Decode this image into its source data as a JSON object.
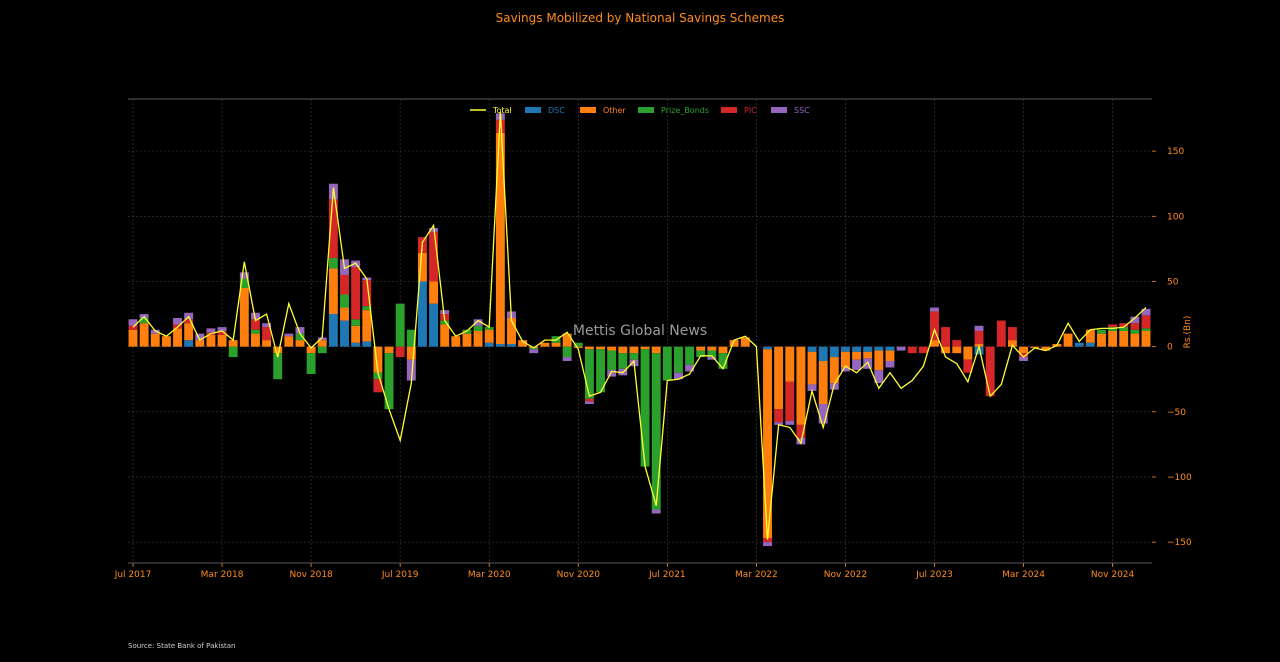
{
  "chart_data": {
    "type": "bar",
    "stacked": true,
    "title": "Savings Mobilized by National Savings Schemes",
    "ylabel": "Rs.(Bn)",
    "xlabel": "",
    "ylim": [
      -166,
      190
    ],
    "yticks": [
      -150,
      -100,
      -50,
      0,
      50,
      100,
      150
    ],
    "y_axis_side": "right",
    "grid": true,
    "legend_placement": "top-center",
    "watermark": "Mettis Global News",
    "source": "Source: State Bank of Pakistan",
    "x_tick_labels": [
      "Jul 2017",
      "Mar 2018",
      "Nov 2018",
      "Jul 2019",
      "Mar 2020",
      "Nov 2020",
      "Jul 2021",
      "Mar 2022",
      "Nov 2022",
      "Jul 2023",
      "Mar 2024",
      "Nov 2024"
    ],
    "x_tick_index": [
      0,
      8,
      16,
      24,
      32,
      40,
      48,
      56,
      64,
      72,
      80,
      88
    ],
    "categories": [
      "2017-07",
      "2017-08",
      "2017-09",
      "2017-10",
      "2017-11",
      "2017-12",
      "2018-01",
      "2018-02",
      "2018-03",
      "2018-04",
      "2018-05",
      "2018-06",
      "2018-07",
      "2018-08",
      "2018-09",
      "2018-10",
      "2018-11",
      "2018-12",
      "2019-01",
      "2019-02",
      "2019-03",
      "2019-04",
      "2019-05",
      "2019-06",
      "2019-07",
      "2019-08",
      "2019-09",
      "2019-10",
      "2019-11",
      "2019-12",
      "2020-01",
      "2020-02",
      "2020-03",
      "2020-04",
      "2020-05",
      "2020-06",
      "2020-07",
      "2020-08",
      "2020-09",
      "2020-10",
      "2020-11",
      "2020-12",
      "2021-01",
      "2021-02",
      "2021-03",
      "2021-04",
      "2021-05",
      "2021-06",
      "2021-07",
      "2021-08",
      "2021-09",
      "2021-10",
      "2021-11",
      "2021-12",
      "2022-01",
      "2022-02",
      "2022-03",
      "2022-04",
      "2022-05",
      "2022-06",
      "2022-07",
      "2022-08",
      "2022-09",
      "2022-10",
      "2022-11",
      "2022-12",
      "2023-01",
      "2023-02",
      "2023-03",
      "2023-04",
      "2023-05",
      "2023-06",
      "2023-07",
      "2023-08",
      "2023-09",
      "2023-10",
      "2023-11",
      "2023-12",
      "2024-01",
      "2024-02",
      "2024-03",
      "2024-04",
      "2024-05",
      "2024-06",
      "2024-07",
      "2024-08",
      "2024-09",
      "2024-10",
      "2024-11",
      "2024-12",
      "2025-01",
      "2025-02"
    ],
    "line_series": {
      "name": "Total",
      "color": "#ffff33",
      "values": [
        15,
        23,
        12,
        8,
        15,
        23,
        5,
        10,
        12,
        5,
        65,
        20,
        25,
        -8,
        33,
        10,
        -1,
        7,
        122,
        60,
        64,
        52,
        -20,
        -48,
        -72,
        -28,
        80,
        93,
        20,
        8,
        12,
        20,
        15,
        180,
        20,
        4,
        -1,
        5,
        5,
        11,
        -2,
        -38,
        -35,
        -19,
        -20,
        -11,
        -92,
        -122,
        -26,
        -25,
        -21,
        -7,
        -7,
        -17,
        5,
        8,
        0,
        -148,
        -60,
        -62,
        -74,
        -34,
        -62,
        -29,
        -15,
        -20,
        -12,
        -32,
        -20,
        -32,
        -26,
        -15,
        13,
        -8,
        -13,
        -27,
        0,
        -38,
        -29,
        1,
        -8,
        -1,
        -3,
        1,
        18,
        4,
        13,
        14,
        14,
        15,
        22,
        30
      ]
    },
    "series": [
      {
        "name": "DSC",
        "color": "#1f77b4",
        "values": [
          0,
          0,
          0,
          0,
          0,
          5,
          0,
          0,
          0,
          0,
          0,
          0,
          0,
          0,
          0,
          0,
          0,
          0,
          25,
          20,
          3,
          4,
          0,
          0,
          0,
          0,
          50,
          33,
          0,
          0,
          0,
          0,
          3,
          2,
          2,
          0,
          0,
          0,
          0,
          0,
          0,
          0,
          0,
          0,
          0,
          0,
          0,
          0,
          0,
          0,
          0,
          0,
          0,
          0,
          0,
          0,
          0,
          -2,
          0,
          0,
          0,
          -4,
          -11,
          -8,
          -4,
          -4,
          -4,
          -3,
          -3,
          0,
          0,
          0,
          0,
          0,
          0,
          0,
          -6,
          0,
          0,
          0,
          0,
          0,
          0,
          0,
          0,
          3,
          3,
          0,
          0,
          0,
          0,
          0
        ]
      },
      {
        "name": "Other",
        "color": "#ff7f0e",
        "values": [
          13,
          18,
          10,
          8,
          14,
          13,
          5,
          9,
          9,
          5,
          45,
          10,
          5,
          -5,
          8,
          5,
          -5,
          5,
          35,
          10,
          13,
          24,
          -20,
          -5,
          0,
          -10,
          22,
          17,
          17,
          8,
          10,
          12,
          10,
          162,
          20,
          5,
          -1,
          3,
          3,
          10,
          -1,
          -2,
          -2,
          -3,
          -5,
          -5,
          -2,
          -5,
          0,
          0,
          0,
          -3,
          -3,
          -5,
          5,
          7,
          0,
          -145,
          -48,
          -27,
          -60,
          -25,
          -33,
          -20,
          -12,
          -6,
          -5,
          -15,
          -8,
          0,
          0,
          0,
          5,
          -5,
          -5,
          -10,
          2,
          0,
          0,
          5,
          -5,
          -1,
          -3,
          2,
          10,
          0,
          10,
          10,
          12,
          12,
          10,
          12
        ]
      },
      {
        "name": "Prize_Bonds",
        "color": "#2ca02c",
        "values": [
          0,
          4,
          0,
          0,
          0,
          0,
          0,
          0,
          0,
          -8,
          7,
          3,
          0,
          -20,
          0,
          5,
          -16,
          -5,
          8,
          10,
          5,
          3,
          -5,
          -43,
          33,
          13,
          0,
          0,
          3,
          0,
          3,
          4,
          2,
          0,
          0,
          0,
          -1,
          0,
          5,
          -8,
          3,
          -38,
          -33,
          -15,
          -12,
          -5,
          -90,
          -120,
          -26,
          -20,
          -14,
          -5,
          -5,
          -12,
          0,
          0,
          0,
          0,
          0,
          0,
          0,
          0,
          0,
          0,
          0,
          0,
          0,
          0,
          0,
          0,
          0,
          0,
          0,
          0,
          0,
          0,
          0,
          0,
          0,
          0,
          0,
          0,
          0,
          0,
          0,
          0,
          0,
          3,
          3,
          3,
          3,
          2
        ]
      },
      {
        "name": "PIC",
        "color": "#d62728",
        "values": [
          3,
          0,
          0,
          0,
          3,
          3,
          0,
          2,
          3,
          0,
          0,
          8,
          10,
          0,
          0,
          0,
          0,
          0,
          45,
          15,
          40,
          20,
          -10,
          0,
          -8,
          0,
          12,
          38,
          5,
          0,
          0,
          0,
          0,
          10,
          0,
          0,
          0,
          0,
          0,
          0,
          0,
          -2,
          0,
          0,
          0,
          0,
          0,
          0,
          0,
          0,
          0,
          0,
          0,
          0,
          0,
          0,
          0,
          -3,
          -10,
          -30,
          -10,
          0,
          0,
          0,
          0,
          0,
          0,
          0,
          0,
          0,
          -5,
          -5,
          22,
          15,
          5,
          -10,
          10,
          -38,
          20,
          10,
          -3,
          0,
          0,
          0,
          0,
          0,
          0,
          0,
          2,
          3,
          5,
          10
        ]
      },
      {
        "name": "SSC",
        "color": "#9467bd",
        "values": [
          5,
          3,
          3,
          0,
          5,
          5,
          5,
          3,
          3,
          0,
          5,
          5,
          3,
          0,
          2,
          5,
          0,
          2,
          12,
          12,
          5,
          2,
          0,
          0,
          0,
          -16,
          0,
          3,
          3,
          0,
          0,
          5,
          0,
          5,
          5,
          0,
          -3,
          0,
          0,
          -3,
          0,
          -2,
          0,
          -5,
          -5,
          -5,
          0,
          -3,
          0,
          -5,
          -5,
          0,
          -2,
          0,
          0,
          0,
          0,
          -3,
          -2,
          -3,
          -5,
          -5,
          -15,
          -5,
          -3,
          -8,
          -8,
          -10,
          -5,
          -3,
          0,
          0,
          3,
          0,
          0,
          0,
          4,
          0,
          0,
          0,
          -3,
          0,
          0,
          0,
          0,
          0,
          0,
          0,
          0,
          0,
          5,
          5
        ]
      }
    ]
  }
}
